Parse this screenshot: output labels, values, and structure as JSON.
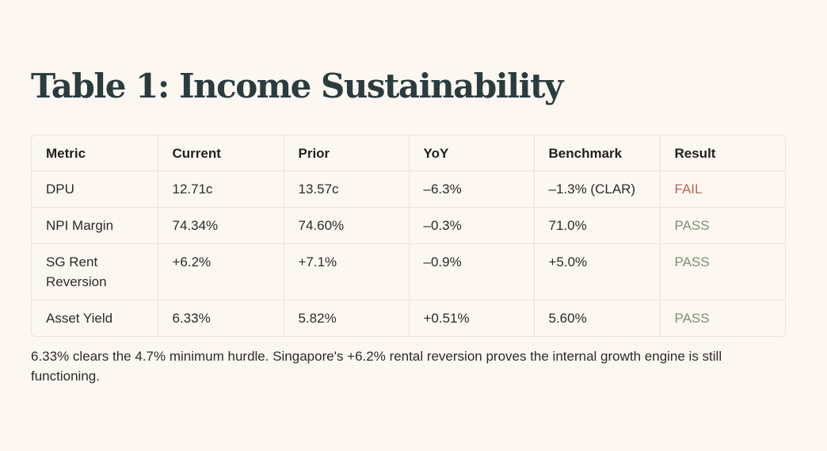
{
  "title": "Table 1: Income Sustainability",
  "table": {
    "headers": [
      "Metric",
      "Current",
      "Prior",
      "YoY",
      "Benchmark",
      "Result"
    ],
    "rows": [
      [
        "DPU",
        "12.71c",
        "13.57c",
        "–6.3%",
        "–1.3% (CLAR)",
        "FAIL"
      ],
      [
        "NPI Margin",
        "74.34%",
        "74.60%",
        "–0.3%",
        "71.0%",
        "PASS"
      ],
      [
        "SG Rent Reversion",
        "+6.2%",
        "+7.1%",
        "–0.9%",
        "+5.0%",
        "PASS"
      ],
      [
        "Asset Yield",
        "6.33%",
        "5.82%",
        "+0.51%",
        "5.60%",
        "PASS"
      ]
    ]
  },
  "note": "6.33% clears the 4.7% minimum hurdle. Singapore's +6.2% rental reversion proves the internal growth engine is still functioning.",
  "colors": {
    "background": "#fdf7f1",
    "title": "#2a3c3e",
    "fail": "#c0625a",
    "pass": "#7d8f78",
    "border": "#ece3da"
  }
}
